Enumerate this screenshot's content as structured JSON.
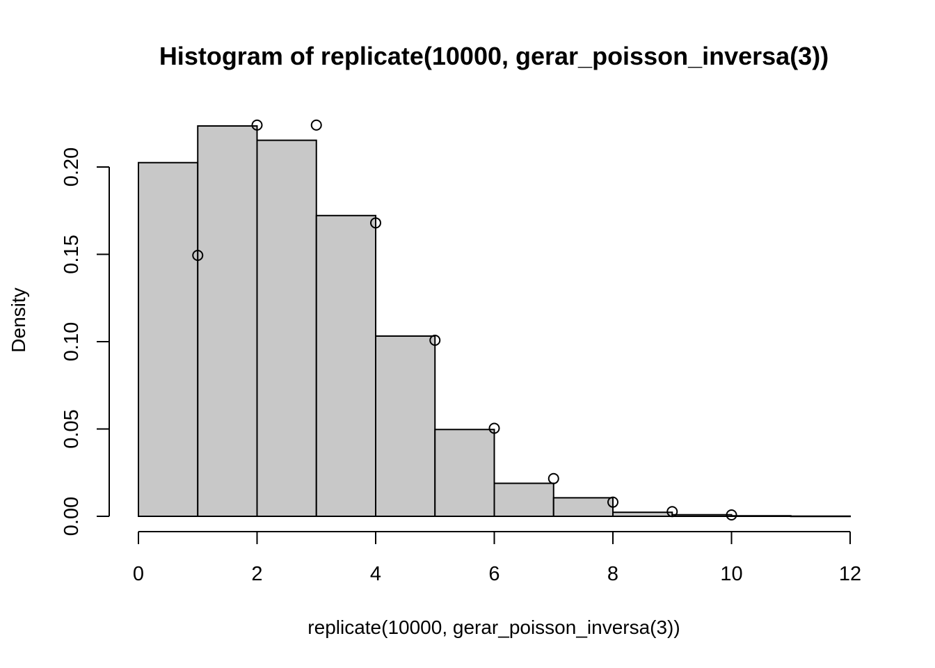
{
  "chart_data": {
    "type": "bar",
    "title": "Histogram of replicate(10000, gerar_poisson_inversa(3))",
    "xlabel": "replicate(10000, gerar_poisson_inversa(3))",
    "ylabel": "Density",
    "xlim": [
      0,
      12
    ],
    "ylim": [
      0,
      0.22
    ],
    "x_ticks": [
      "0",
      "2",
      "4",
      "6",
      "8",
      "10",
      "12"
    ],
    "y_ticks": [
      "0.00",
      "0.05",
      "0.10",
      "0.15",
      "0.20"
    ],
    "grid": false,
    "bar_fill": "#c8c8c8",
    "bins": [
      {
        "start": 0,
        "end": 1,
        "density": 0.2025
      },
      {
        "start": 1,
        "end": 2,
        "density": 0.2235
      },
      {
        "start": 2,
        "end": 3,
        "density": 0.2153
      },
      {
        "start": 3,
        "end": 4,
        "density": 0.1722
      },
      {
        "start": 4,
        "end": 5,
        "density": 0.1032
      },
      {
        "start": 5,
        "end": 6,
        "density": 0.0497
      },
      {
        "start": 6,
        "end": 7,
        "density": 0.0189
      },
      {
        "start": 7,
        "end": 8,
        "density": 0.0106
      },
      {
        "start": 8,
        "end": 9,
        "density": 0.0023
      },
      {
        "start": 9,
        "end": 10,
        "density": 0.0009
      },
      {
        "start": 10,
        "end": 11,
        "density": 0.0003
      },
      {
        "start": 11,
        "end": 12,
        "density": 0.0001
      }
    ],
    "points": [
      {
        "x": 1,
        "y": 0.1494
      },
      {
        "x": 2,
        "y": 0.224
      },
      {
        "x": 3,
        "y": 0.224
      },
      {
        "x": 4,
        "y": 0.168
      },
      {
        "x": 5,
        "y": 0.1008
      },
      {
        "x": 6,
        "y": 0.0504
      },
      {
        "x": 7,
        "y": 0.0216
      },
      {
        "x": 8,
        "y": 0.0081
      },
      {
        "x": 9,
        "y": 0.0027
      },
      {
        "x": 10,
        "y": 0.0008
      }
    ]
  }
}
